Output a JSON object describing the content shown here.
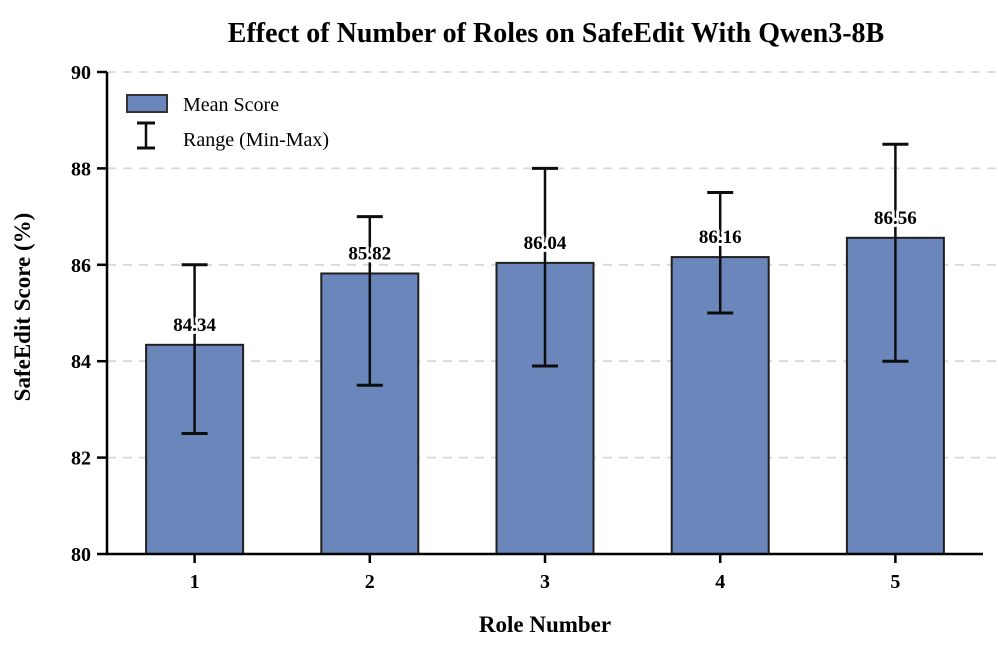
{
  "title": "Effect of Number of Roles on SafeEdit With Qwen3-8B",
  "chart_data": {
    "type": "bar",
    "title": "Effect of Number of Roles on SafeEdit With Qwen3-8B",
    "xlabel": "Role Number",
    "ylabel": "SafeEdit Score (%)",
    "categories": [
      "1",
      "2",
      "3",
      "4",
      "5"
    ],
    "series": [
      {
        "name": "Mean Score",
        "values": [
          84.34,
          85.82,
          86.04,
          86.16,
          86.56
        ],
        "value_labels": [
          "84.34",
          "85.82",
          "86.04",
          "86.16",
          "86.56"
        ]
      }
    ],
    "error_bars": {
      "name": "Range (Min-Max)",
      "min": [
        82.5,
        83.5,
        83.9,
        85.0,
        84.0
      ],
      "max": [
        86.0,
        87.0,
        88.0,
        87.5,
        88.5
      ]
    },
    "ylim": [
      80,
      90
    ],
    "yticks": [
      80,
      82,
      84,
      86,
      88,
      90
    ],
    "ytick_labels": [
      "80",
      "82",
      "84",
      "86",
      "88",
      "90"
    ],
    "grid": "horizontal-dashed",
    "legend_position": "upper-left",
    "legend": {
      "mean_label": "Mean Score",
      "range_label": "Range (Min-Max)"
    },
    "colors": {
      "bar_fill": "#6A86BB",
      "bar_edge": "#1f1f1f",
      "error_bar": "#0d0d0d",
      "grid_line": "#d9d9d9",
      "axis_line": "#000000",
      "text": "#000000",
      "background": "#ffffff"
    }
  }
}
